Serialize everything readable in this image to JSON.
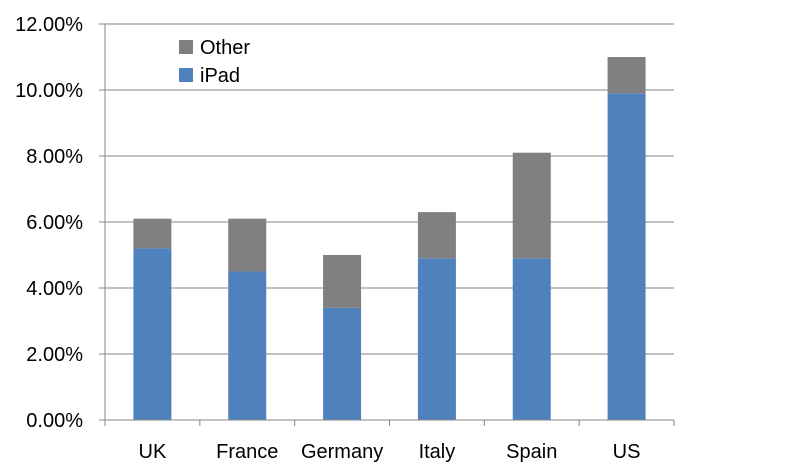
{
  "chart_data": {
    "type": "bar",
    "stacked": true,
    "categories": [
      "UK",
      "France",
      "Germany",
      "Italy",
      "Spain",
      "US"
    ],
    "series": [
      {
        "name": "iPad",
        "color": "#4f81bd",
        "values": [
          5.2,
          4.5,
          3.4,
          4.9,
          4.9,
          9.9
        ]
      },
      {
        "name": "Other",
        "color": "#808080",
        "values": [
          0.9,
          1.6,
          1.6,
          1.4,
          3.2,
          1.1
        ]
      }
    ],
    "ylim": [
      0,
      12
    ],
    "yticks": [
      "0.00%",
      "2.00%",
      "4.00%",
      "6.00%",
      "8.00%",
      "10.00%",
      "12.00%"
    ],
    "grid": true,
    "legend_position": "top-left",
    "legend": [
      "Other",
      "iPad"
    ]
  }
}
